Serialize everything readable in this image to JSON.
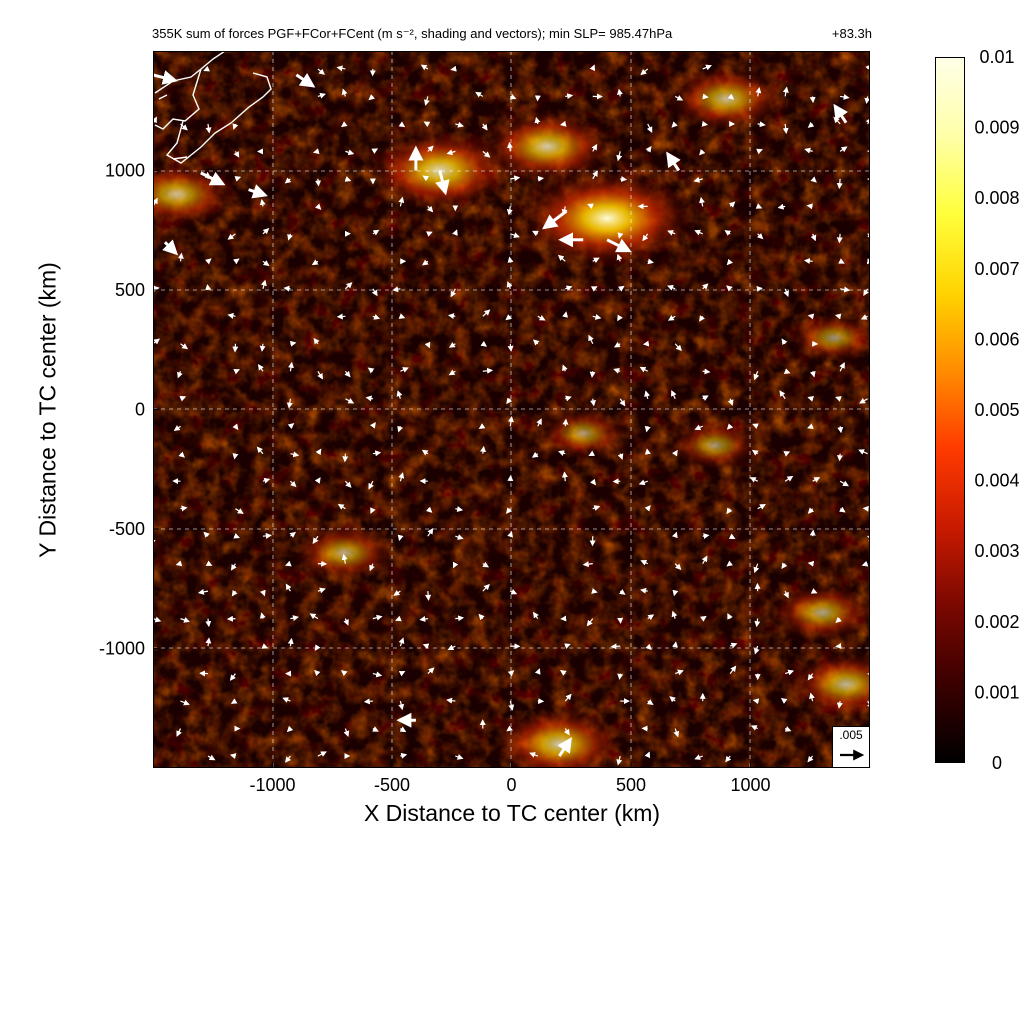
{
  "header": {
    "title": "355K sum of forces PGF+FCor+FCent (m s⁻², shading and vectors); min SLP= 985.47hPa",
    "forecast_hour": "+83.3h"
  },
  "reference_vector": {
    "label": ".005",
    "magnitude": 0.005
  },
  "colorbar": {
    "ticks": [
      "0",
      "0.001",
      "0.002",
      "0.003",
      "0.004",
      "0.005",
      "0.006",
      "0.007",
      "0.008",
      "0.009",
      "0.01"
    ],
    "colors": [
      "#000000",
      "#3a0000",
      "#7a0800",
      "#c81a00",
      "#ff3a00",
      "#ff8c00",
      "#ffd400",
      "#ffff3c",
      "#ffffa8",
      "#ffffe8"
    ]
  },
  "chart_data": {
    "type": "heatmap",
    "title": "355K sum of forces PGF+FCor+FCent (m s⁻², shading and vectors); min SLP= 985.47hPa",
    "xlabel": "X Distance to TC center (km)",
    "ylabel": "Y Distance to TC center (km)",
    "xlim": [
      -1500,
      1500
    ],
    "ylim": [
      -1500,
      1500
    ],
    "xticks": [
      -1000,
      -500,
      0,
      500,
      1000
    ],
    "yticks": [
      -1000,
      -500,
      0,
      500,
      1000
    ],
    "grid": true,
    "colorbar_range": [
      0,
      0.01
    ],
    "high_value_regions": [
      {
        "x": 400,
        "y": 800,
        "value": 0.009
      },
      {
        "x": 150,
        "y": 1100,
        "value": 0.006
      },
      {
        "x": -300,
        "y": 1000,
        "value": 0.007
      },
      {
        "x": -1400,
        "y": 900,
        "value": 0.005
      },
      {
        "x": 900,
        "y": 1300,
        "value": 0.005
      },
      {
        "x": 200,
        "y": -1400,
        "value": 0.006
      },
      {
        "x": 1400,
        "y": -1150,
        "value": 0.005
      },
      {
        "x": 1300,
        "y": -850,
        "value": 0.004
      },
      {
        "x": 850,
        "y": -150,
        "value": 0.003
      },
      {
        "x": -700,
        "y": -600,
        "value": 0.004
      },
      {
        "x": 1350,
        "y": 300,
        "value": 0.003
      },
      {
        "x": 300,
        "y": -100,
        "value": 0.003
      }
    ],
    "large_vectors": [
      {
        "x": 230,
        "y": 830,
        "u": -0.004,
        "v": -0.003
      },
      {
        "x": 400,
        "y": 710,
        "u": 0.004,
        "v": -0.002
      },
      {
        "x": 300,
        "y": 710,
        "u": -0.004,
        "v": 0
      },
      {
        "x": -1300,
        "y": 990,
        "u": 0.004,
        "v": -0.002
      },
      {
        "x": -1100,
        "y": 920,
        "u": 0.003,
        "v": -0.001
      },
      {
        "x": -900,
        "y": 1400,
        "u": 0.003,
        "v": -0.002
      },
      {
        "x": -400,
        "y": 1000,
        "u": 0,
        "v": 0.004
      },
      {
        "x": -300,
        "y": 1000,
        "u": 0.001,
        "v": -0.004
      },
      {
        "x": 700,
        "y": 1000,
        "u": -0.002,
        "v": 0.003
      },
      {
        "x": 1400,
        "y": 1200,
        "u": -0.002,
        "v": 0.003
      },
      {
        "x": -1450,
        "y": 700,
        "u": 0.002,
        "v": -0.002
      },
      {
        "x": 200,
        "y": -1450,
        "u": 0.002,
        "v": 0.003
      },
      {
        "x": -400,
        "y": -1300,
        "u": -0.003,
        "v": 0
      },
      {
        "x": -1500,
        "y": 1400,
        "u": 0.004,
        "v": -0.001
      }
    ]
  }
}
